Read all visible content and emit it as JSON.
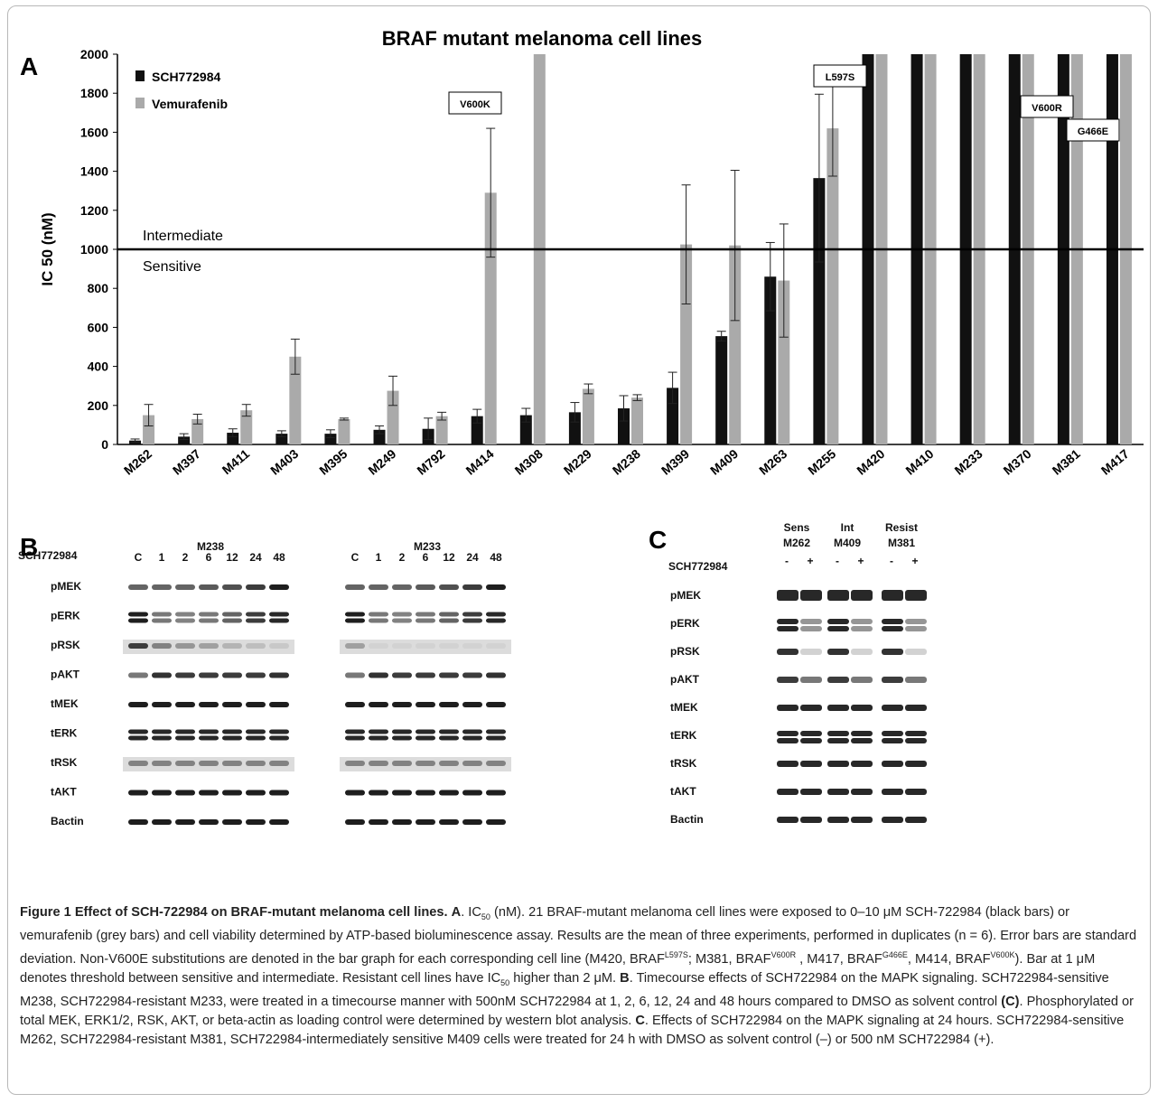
{
  "panel_a": {
    "letter": "A",
    "chart_data": {
      "type": "bar",
      "title": "BRAF mutant melanoma cell lines",
      "ylabel": "IC 50 (nM)",
      "xlabel": "",
      "ylim": [
        0,
        2000
      ],
      "yticks": [
        0,
        200,
        400,
        600,
        800,
        1000,
        1200,
        1400,
        1600,
        1800,
        2000
      ],
      "categories": [
        "M262",
        "M397",
        "M411",
        "M403",
        "M395",
        "M249",
        "M792",
        "M414",
        "M308",
        "M229",
        "M238",
        "M399",
        "M409",
        "M263",
        "M255",
        "M420",
        "M410",
        "M233",
        "M370",
        "M381",
        "M417"
      ],
      "series": [
        {
          "name": "SCH772984",
          "color": "#111111",
          "values": [
            20,
            40,
            60,
            55,
            55,
            75,
            80,
            145,
            150,
            165,
            185,
            290,
            555,
            860,
            1365,
            2000,
            2000,
            2000,
            2000,
            2000,
            2000
          ],
          "errors": [
            8,
            15,
            20,
            15,
            20,
            20,
            55,
            35,
            35,
            50,
            65,
            80,
            25,
            175,
            430,
            0,
            0,
            0,
            0,
            0,
            0
          ]
        },
        {
          "name": "Vemurafenib",
          "color": "#aaaaaa",
          "values": [
            150,
            130,
            175,
            450,
            130,
            275,
            145,
            1290,
            2000,
            285,
            240,
            1025,
            1020,
            840,
            1620,
            2000,
            2000,
            2000,
            2000,
            2000,
            2000
          ],
          "errors": [
            55,
            25,
            30,
            90,
            5,
            75,
            20,
            330,
            0,
            25,
            15,
            305,
            385,
            290,
            245,
            0,
            0,
            0,
            0,
            0,
            0
          ]
        }
      ],
      "threshold": {
        "value": 1000,
        "label_above": "Intermediate",
        "label_below": "Sensitive"
      },
      "annotations": [
        {
          "label": "V600K",
          "category": "M414"
        },
        {
          "label": "L597S",
          "category": "M420"
        },
        {
          "label": "V600R",
          "category": "M381"
        },
        {
          "label": "G466E",
          "category": "M417"
        }
      ],
      "legend_position": "top-left"
    }
  },
  "panel_b": {
    "letter": "B",
    "drug_label": "SCH772984",
    "groups": [
      {
        "name": "M238",
        "lanes": [
          "C",
          "1",
          "2",
          "6",
          "12",
          "24",
          "48"
        ]
      },
      {
        "name": "M233",
        "lanes": [
          "C",
          "1",
          "2",
          "6",
          "12",
          "24",
          "48"
        ]
      }
    ],
    "rows": [
      "pMEK",
      "pERK",
      "pRSK",
      "pAKT",
      "tMEK",
      "tERK",
      "tRSK",
      "tAKT",
      "Bactin"
    ]
  },
  "panel_c": {
    "letter": "C",
    "drug_label": "SCH772984",
    "groups": [
      {
        "line1": "Sens",
        "line2": "M262",
        "lanes": [
          "-",
          "+"
        ]
      },
      {
        "line1": "Int",
        "line2": "M409",
        "lanes": [
          "-",
          "+"
        ]
      },
      {
        "line1": "Resist",
        "line2": "M381",
        "lanes": [
          "-",
          "+"
        ]
      }
    ],
    "rows": [
      "pMEK",
      "pERK",
      "pRSK",
      "pAKT",
      "tMEK",
      "tERK",
      "tRSK",
      "tAKT",
      "Bactin"
    ]
  },
  "caption": {
    "title": "Figure 1 Effect of SCH-722984 on BRAF-mutant melanoma cell lines.",
    "a_label": "A",
    "a_text_1": ". IC",
    "a_sub": "50",
    "a_text_2": " (nM). 21 BRAF-mutant melanoma cell lines were exposed to 0–10 μM SCH-722984 (black bars) or vemurafenib (grey bars) and cell viability determined by ATP-based bioluminescence assay. Results are the mean of three experiments, performed in duplicates (n = 6). Error bars are standard deviation. Non-V600E substitutions are denoted in the bar graph for each corresponding cell line (M420, BRAF",
    "sup1": "L597S",
    "a_text_3": "; M381, BRAF",
    "sup2": "V600R",
    "a_text_4": " , M417, BRAF",
    "sup3": "G466E",
    "a_text_5": ", M414, BRAF",
    "sup4": "V600K",
    "a_text_6": "). Bar at 1 μM denotes threshold between sensitive and intermediate. Resistant cell lines have IC",
    "a_sub2": "50",
    "a_text_7": " higher than 2 μM. ",
    "b_label": "B",
    "b_text_1": ". Timecourse effects of SCH722984 on the MAPK signaling. SCH722984-sensitive M238, SCH722984-resistant M233, were treated in a timecourse manner with 500nM SCH722984 at 1, 2, 6, 12, 24 and 48 hours compared to DMSO as solvent control ",
    "b_c_ref": "(C)",
    "b_text_2": ". Phosphorylated or total MEK, ERK1/2, RSK, AKT, or beta-actin as loading control were determined by western blot analysis. ",
    "c_label": "C",
    "c_text": ". Effects of SCH722984 on the MAPK signaling at 24 hours. SCH722984-sensitive M262, SCH722984-resistant M381, SCH722984-intermediately sensitive M409 cells were treated for 24 h with DMSO as solvent control (–) or 500 nM SCH722984 (+)."
  }
}
